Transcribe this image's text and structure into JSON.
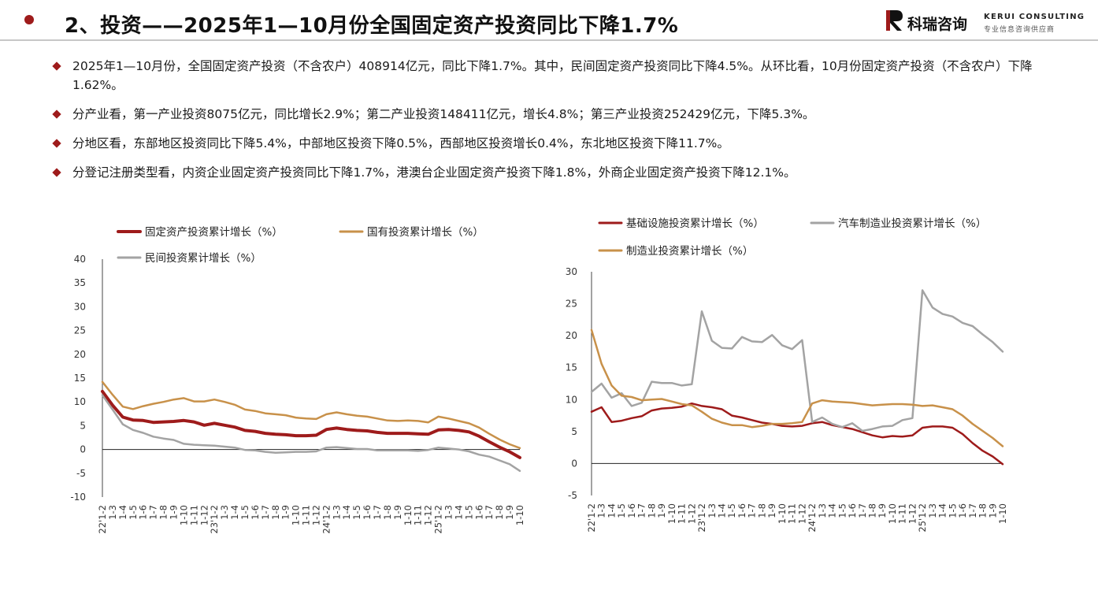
{
  "header": {
    "title": "2、投资——2025年1—10月份全国固定资产投资同比下降1.7%",
    "logo_cn": "科瑞咨询",
    "logo_en": "KERUI CONSULTING",
    "logo_sub": "专业信息咨询供应商",
    "accent": "#9e1b1b"
  },
  "bullets": [
    "2025年1—10月份，全国固定资产投资（不含农户）408914亿元，同比下降1.7%。其中，民间固定资产投资同比下降4.5%。从环比看，10月份固定资产投资（不含农户）下降1.62%。",
    "分产业看，第一产业投资8075亿元，同比增长2.9%；第二产业投资148411亿元，增长4.8%；第三产业投资252429亿元，下降5.3%。",
    "分地区看，东部地区投资同比下降5.4%，中部地区投资下降0.5%，西部地区投资增长0.4%，东北地区投资下降11.7%。",
    "分登记注册类型看，内资企业固定资产投资同比下降1.7%，港澳台企业固定资产投资下降1.8%，外商企业固定资产投资下降12.1%。"
  ],
  "chart_data": [
    {
      "type": "line",
      "title": "",
      "xlabel": "",
      "ylabel": "",
      "ylim": [
        -10,
        40
      ],
      "yticks": [
        -10,
        -5,
        0,
        5,
        10,
        15,
        20,
        25,
        30,
        35,
        40
      ],
      "legend_position": "top",
      "x": [
        "22'1-2",
        "1-3",
        "1-4",
        "1-5",
        "1-6",
        "1-7",
        "1-8",
        "1-9",
        "1-10",
        "1-11",
        "1-12",
        "23'1-2",
        "1-3",
        "1-4",
        "1-5",
        "1-6",
        "1-7",
        "1-8",
        "1-9",
        "1-10",
        "1-11",
        "1-12",
        "24'1-2",
        "1-3",
        "1-4",
        "1-5",
        "1-6",
        "1-7",
        "1-8",
        "1-9",
        "1-10",
        "1-11",
        "1-12",
        "25'1-2",
        "1-3",
        "1-4",
        "1-5",
        "1-6",
        "1-7",
        "1-8",
        "1-9",
        "1-10"
      ],
      "series": [
        {
          "name": "固定资产投资累计增长（%）",
          "color": "#9e1b1b",
          "width": 4,
          "values": [
            12.2,
            9.3,
            6.8,
            6.2,
            6.1,
            5.7,
            5.8,
            5.9,
            6.1,
            5.8,
            5.1,
            5.5,
            5.1,
            4.7,
            4.0,
            3.8,
            3.4,
            3.2,
            3.1,
            2.9,
            2.9,
            3.0,
            4.2,
            4.5,
            4.2,
            4.0,
            3.9,
            3.6,
            3.4,
            3.4,
            3.4,
            3.3,
            3.2,
            4.1,
            4.2,
            4.0,
            3.7,
            2.8,
            1.6,
            0.5,
            -0.5,
            -1.7
          ]
        },
        {
          "name": "国有投资累计增长（%）",
          "color": "#c8914a",
          "width": 2.5,
          "values": [
            14.2,
            11.5,
            9.0,
            8.5,
            9.1,
            9.6,
            10.0,
            10.5,
            10.8,
            10.1,
            10.1,
            10.5,
            10.0,
            9.4,
            8.4,
            8.1,
            7.6,
            7.4,
            7.2,
            6.7,
            6.5,
            6.4,
            7.4,
            7.8,
            7.4,
            7.1,
            6.9,
            6.5,
            6.1,
            6.0,
            6.1,
            6.0,
            5.7,
            6.9,
            6.5,
            6.0,
            5.5,
            4.6,
            3.3,
            2.1,
            1.1,
            0.3
          ]
        },
        {
          "name": "民间投资累计增长（%）",
          "color": "#a3a3a3",
          "width": 2.5,
          "values": [
            11.4,
            8.4,
            5.3,
            4.1,
            3.5,
            2.7,
            2.3,
            2.0,
            1.2,
            1.0,
            0.9,
            0.8,
            0.6,
            0.4,
            -0.1,
            -0.2,
            -0.5,
            -0.7,
            -0.6,
            -0.5,
            -0.5,
            -0.4,
            0.4,
            0.5,
            0.3,
            0.1,
            0.1,
            -0.2,
            -0.2,
            -0.2,
            -0.2,
            -0.3,
            -0.1,
            0.4,
            0.2,
            0.0,
            -0.4,
            -1.1,
            -1.5,
            -2.3,
            -3.1,
            -4.5
          ]
        }
      ]
    },
    {
      "type": "line",
      "title": "",
      "xlabel": "",
      "ylabel": "",
      "ylim": [
        -5,
        30
      ],
      "yticks": [
        -5,
        0,
        5,
        10,
        15,
        20,
        25,
        30
      ],
      "legend_position": "top",
      "x": [
        "22'1-2",
        "1-3",
        "1-4",
        "1-5",
        "1-6",
        "1-7",
        "1-8",
        "1-9",
        "1-10",
        "1-11",
        "1-12",
        "23'1-2",
        "1-3",
        "1-4",
        "1-5",
        "1-6",
        "1-7",
        "1-8",
        "1-9",
        "1-10",
        "1-11",
        "1-12",
        "24'1-2",
        "1-3",
        "1-4",
        "1-5",
        "1-6",
        "1-7",
        "1-8",
        "1-9",
        "1-10",
        "1-11",
        "1-12",
        "25'1-2",
        "1-3",
        "1-4",
        "1-5",
        "1-6",
        "1-7",
        "1-8",
        "1-9",
        "1-10"
      ],
      "series": [
        {
          "name": "基础设施投资累计增长（%）",
          "color": "#9e1b1b",
          "width": 2.5,
          "values": [
            8.1,
            8.8,
            6.5,
            6.7,
            7.1,
            7.4,
            8.3,
            8.6,
            8.7,
            8.9,
            9.4,
            9.0,
            8.8,
            8.5,
            7.5,
            7.2,
            6.8,
            6.4,
            6.2,
            5.9,
            5.8,
            5.9,
            6.3,
            6.5,
            6.0,
            5.7,
            5.4,
            4.9,
            4.4,
            4.1,
            4.3,
            4.2,
            4.4,
            5.6,
            5.8,
            5.8,
            5.6,
            4.6,
            3.2,
            2.0,
            1.1,
            -0.1
          ]
        },
        {
          "name": "汽车制造业投资累计增长（%）",
          "color": "#a3a3a3",
          "width": 2.5,
          "values": [
            11.2,
            12.5,
            10.3,
            11.0,
            9.0,
            9.5,
            12.8,
            12.6,
            12.6,
            12.2,
            12.4,
            23.8,
            19.2,
            18.1,
            18.0,
            19.8,
            19.1,
            19.0,
            20.1,
            18.5,
            17.9,
            19.3,
            6.5,
            7.2,
            6.2,
            5.7,
            6.3,
            5.1,
            5.4,
            5.8,
            5.9,
            6.8,
            7.1,
            27.1,
            24.4,
            23.4,
            23.0,
            22.0,
            21.5,
            20.2,
            19.0,
            17.5
          ]
        },
        {
          "name": "制造业投资累计增长（%）",
          "color": "#c8914a",
          "width": 2.5,
          "values": [
            20.9,
            15.6,
            12.2,
            10.6,
            10.4,
            9.9,
            10.0,
            10.1,
            9.7,
            9.3,
            9.1,
            8.1,
            7.0,
            6.4,
            6.0,
            6.0,
            5.7,
            5.9,
            6.2,
            6.2,
            6.3,
            6.5,
            9.4,
            9.9,
            9.7,
            9.6,
            9.5,
            9.3,
            9.1,
            9.2,
            9.3,
            9.3,
            9.2,
            9.0,
            9.1,
            8.8,
            8.5,
            7.5,
            6.2,
            5.1,
            4.0,
            2.7
          ]
        }
      ]
    }
  ]
}
